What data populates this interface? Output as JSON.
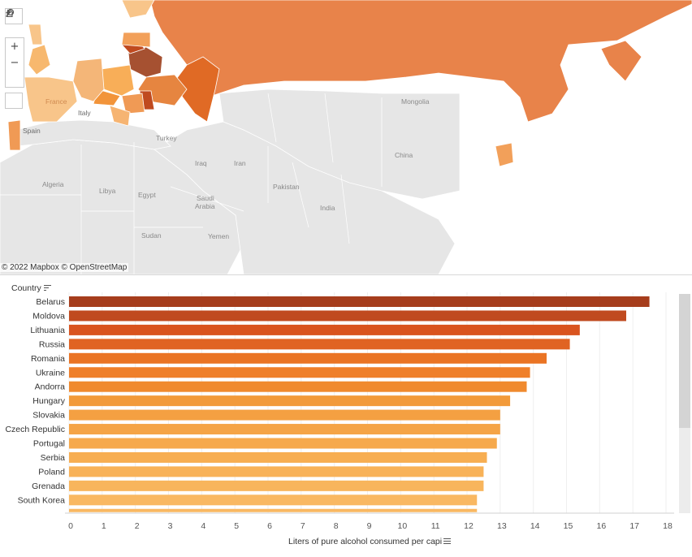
{
  "map": {
    "attribution": "© 2022 Mapbox © OpenStreetMap",
    "labels": {
      "mongolia": "Mongolia",
      "china": "China",
      "turkey": "Turkey",
      "iraq": "Iraq",
      "iran": "Iran",
      "algeria": "Algeria",
      "libya": "Libya",
      "egypt": "Egypt",
      "saudi": "Saudi",
      "arabia": "Arabia",
      "pakistan": "Pakistan",
      "india": "India",
      "sudan": "Sudan",
      "yemen": "Yemen",
      "spain": "Spain",
      "italy": "Italy",
      "france": "France"
    },
    "tools": {
      "search_icon": "search-icon",
      "zoom_in": "+",
      "zoom_out": "−",
      "home_icon": "home-icon",
      "play_icon": "play-icon"
    }
  },
  "chart_header": {
    "label": "Country"
  },
  "colors": {
    "darkest": "#a63d1c",
    "dark": "#c04a1f",
    "mid": "#e06a25",
    "light": "#f2943a",
    "lighter": "#f8ae58"
  },
  "chart_data": {
    "type": "bar",
    "orientation": "horizontal",
    "categories": [
      "Belarus",
      "Moldova",
      "Lithuania",
      "Russia",
      "Romania",
      "Ukraine",
      "Andorra",
      "Hungary",
      "Slovakia",
      "Czech Republic",
      "Portugal",
      "Serbia",
      "Poland",
      "Grenada",
      "South Korea"
    ],
    "values": [
      17.5,
      16.8,
      15.4,
      15.1,
      14.4,
      13.9,
      13.8,
      13.3,
      13.0,
      13.0,
      12.9,
      12.6,
      12.5,
      12.5,
      12.3
    ],
    "xlabel": "Liters of pure alcohol consumed per capi",
    "ylabel": "Country",
    "xlim": [
      0,
      18
    ],
    "xticks": [
      "0",
      "1",
      "2",
      "3",
      "4",
      "5",
      "6",
      "7",
      "8",
      "9",
      "10",
      "11",
      "12",
      "13",
      "14",
      "15",
      "16",
      "17",
      "18"
    ],
    "grid": true
  }
}
